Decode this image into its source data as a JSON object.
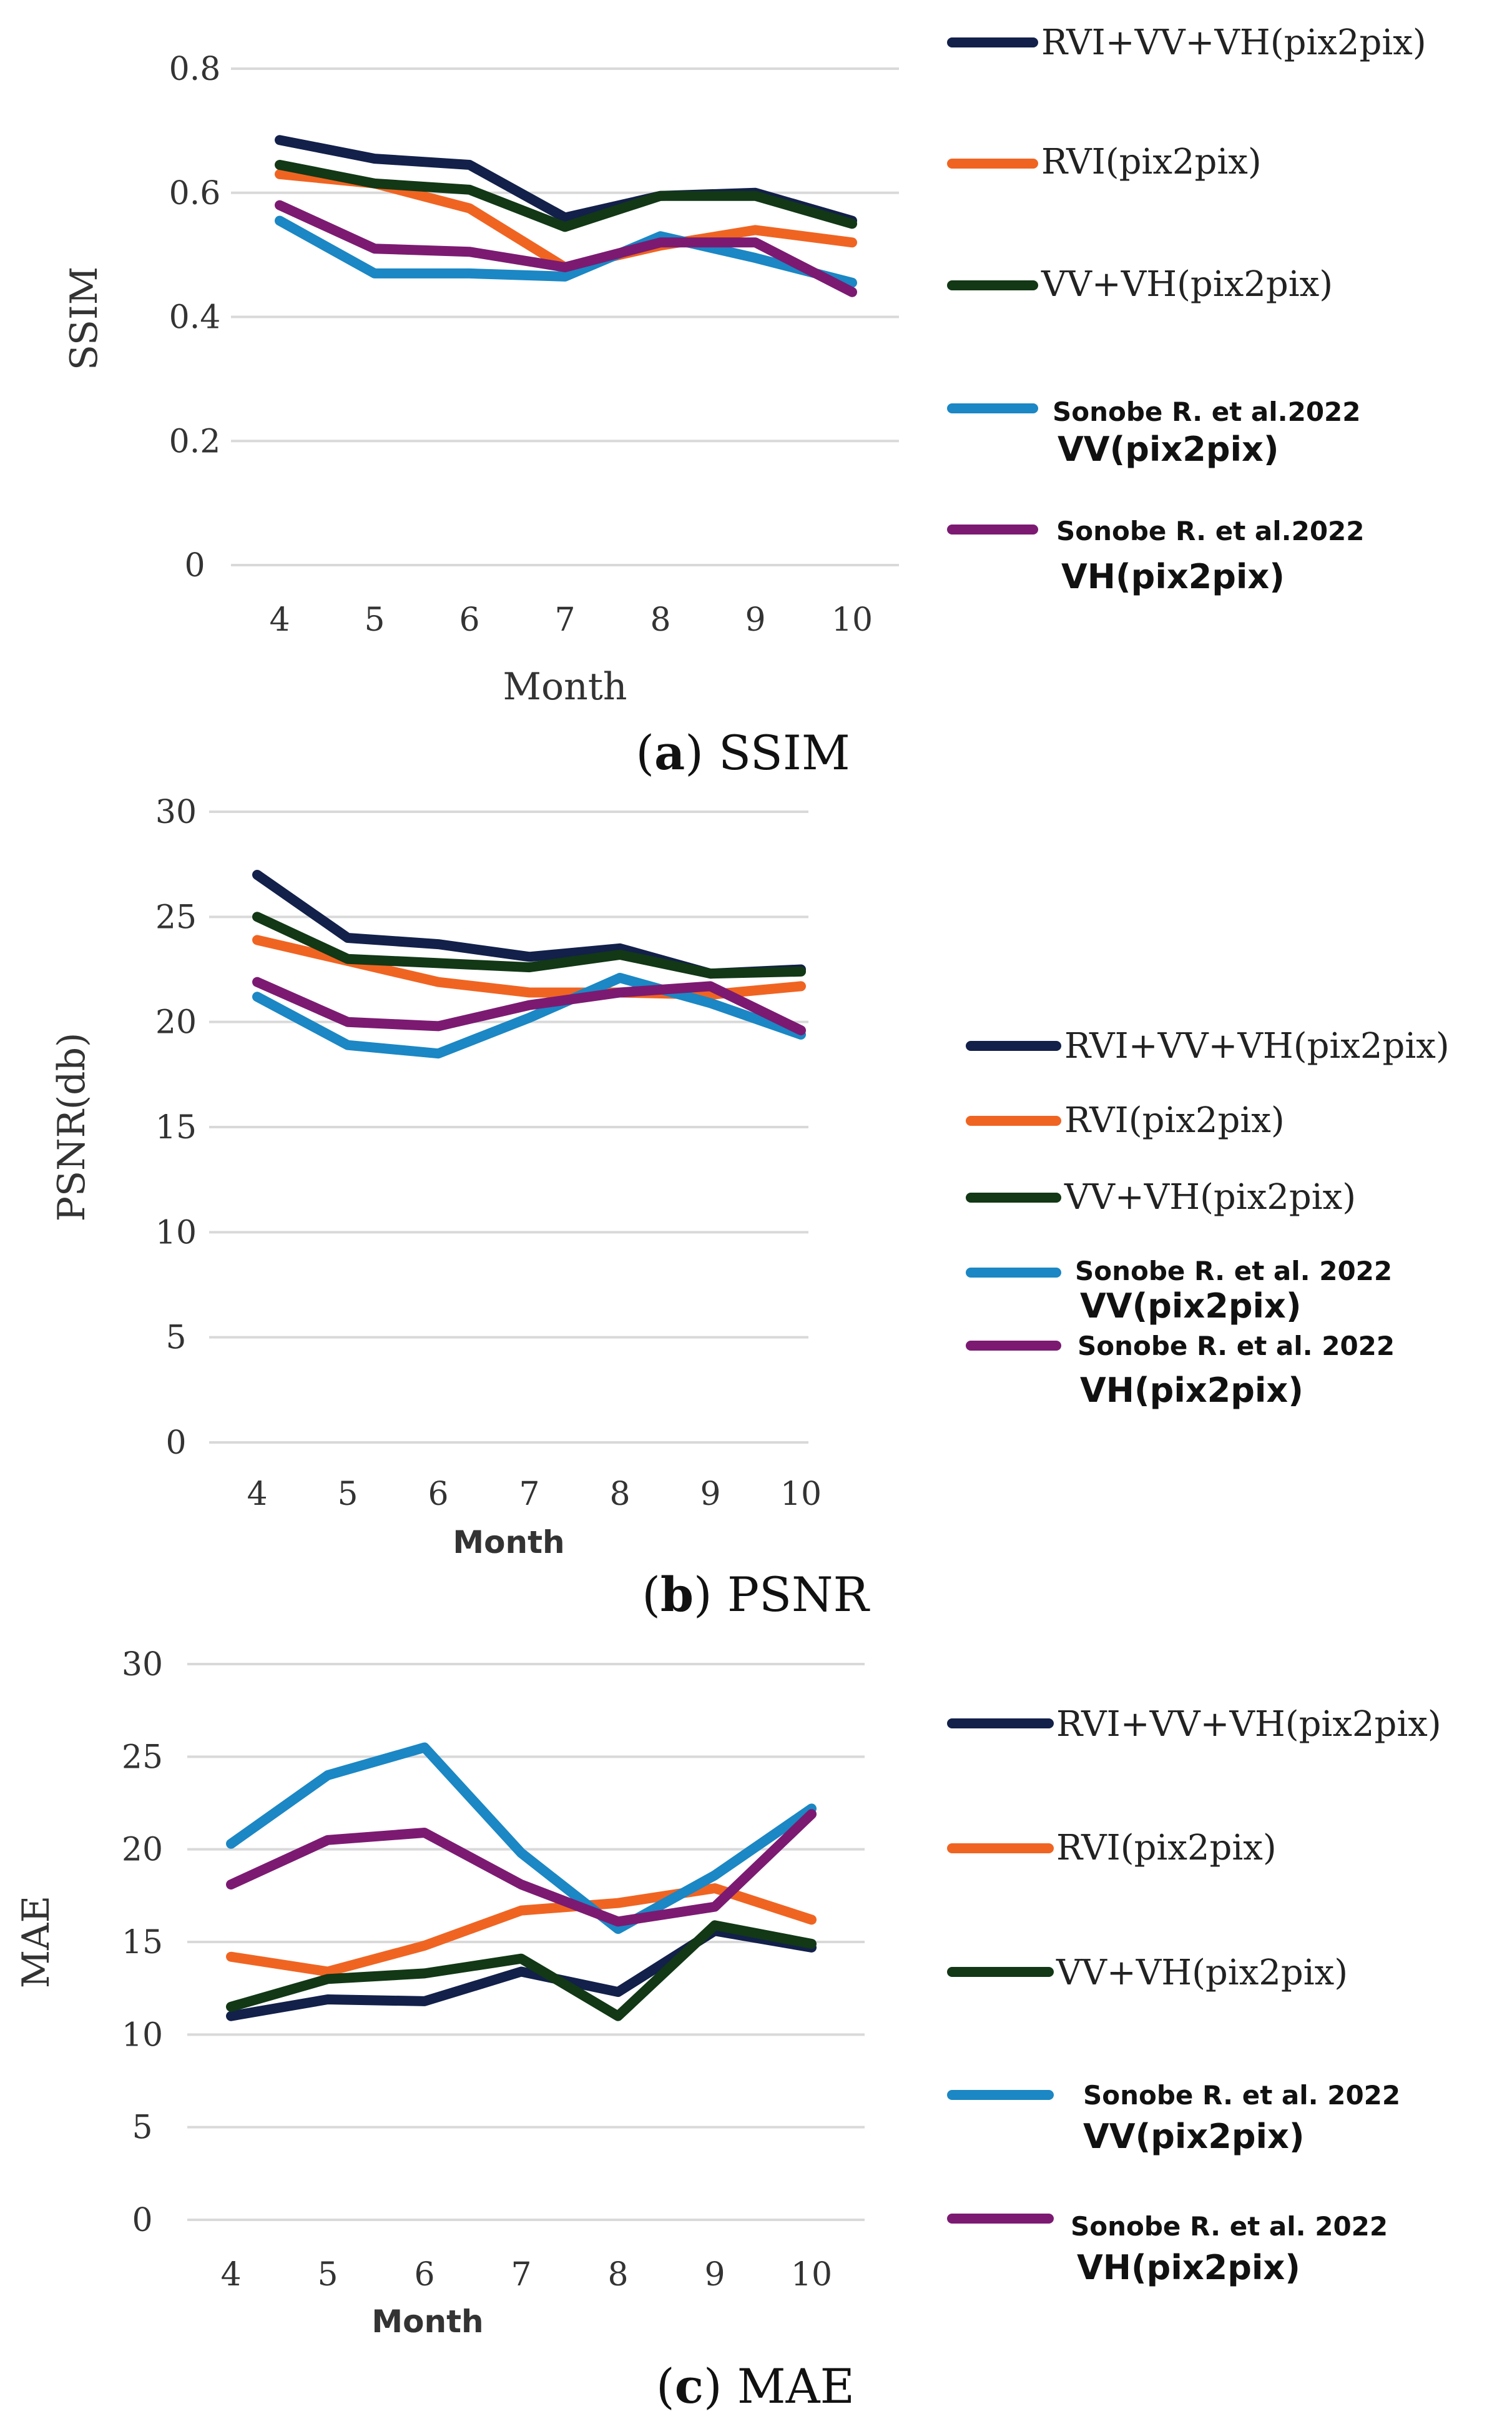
{
  "chart_data": [
    {
      "type": "line",
      "id": "ssim",
      "ylabel": "SSIM",
      "xlabel": "Month",
      "caption_letter": "a",
      "caption_text": " SSIM",
      "ylim": [
        0,
        0.8
      ],
      "yticks": [
        "0",
        "0.2",
        "0.4",
        "0.6",
        "0.8"
      ],
      "categories": [
        "4",
        "5",
        "6",
        "7",
        "8",
        "9",
        "10"
      ],
      "series": [
        {
          "name": "RVI+VV+VH(pix2pix)",
          "color": "#12204a",
          "values": [
            0.685,
            0.655,
            0.645,
            0.56,
            0.595,
            0.6,
            0.555
          ]
        },
        {
          "name": "RVI(pix2pix)",
          "color": "#f06422",
          "values": [
            0.63,
            0.615,
            0.575,
            0.48,
            0.515,
            0.54,
            0.52
          ]
        },
        {
          "name": "VV+VH(pix2pix)",
          "color": "#123816",
          "values": [
            0.645,
            0.615,
            0.605,
            0.545,
            0.595,
            0.595,
            0.55
          ]
        },
        {
          "name": "VV(pix2pix)",
          "prefix": "Sonobe R. et al.2022",
          "color": "#1b87c4",
          "values": [
            0.555,
            0.47,
            0.47,
            0.465,
            0.53,
            0.495,
            0.455
          ]
        },
        {
          "name": "VH(pix2pix)",
          "prefix": "Sonobe R. et al.2022",
          "color": "#7c1a72",
          "values": [
            0.58,
            0.51,
            0.505,
            0.48,
            0.52,
            0.52,
            0.44
          ]
        }
      ]
    },
    {
      "type": "line",
      "id": "psnr",
      "ylabel": "PSNR(db)",
      "xlabel": "Month",
      "caption_letter": "b",
      "caption_text": " PSNR",
      "ylim": [
        0,
        30
      ],
      "yticks": [
        "0",
        "5",
        "10",
        "15",
        "20",
        "25",
        "30"
      ],
      "categories": [
        "4",
        "5",
        "6",
        "7",
        "8",
        "9",
        "10"
      ],
      "series": [
        {
          "name": "RVI+VV+VH(pix2pix)",
          "color": "#12204a",
          "values": [
            27.0,
            24.0,
            23.7,
            23.1,
            23.5,
            22.3,
            22.5
          ]
        },
        {
          "name": "RVI(pix2pix)",
          "color": "#f06422",
          "values": [
            23.9,
            22.9,
            21.9,
            21.4,
            21.4,
            21.3,
            21.7
          ]
        },
        {
          "name": "VV+VH(pix2pix)",
          "color": "#123816",
          "values": [
            25.0,
            23.0,
            22.8,
            22.6,
            23.2,
            22.3,
            22.4
          ]
        },
        {
          "name": "VV(pix2pix)",
          "prefix": "Sonobe R. et al. 2022",
          "color": "#1b87c4",
          "values": [
            21.2,
            18.9,
            18.5,
            20.2,
            22.1,
            20.9,
            19.4
          ]
        },
        {
          "name": "VH(pix2pix)",
          "prefix": "Sonobe R. et al. 2022",
          "color": "#7c1a72",
          "values": [
            21.9,
            20.0,
            19.8,
            20.8,
            21.4,
            21.7,
            19.6
          ]
        }
      ]
    },
    {
      "type": "line",
      "id": "mae",
      "ylabel": "MAE",
      "xlabel": "Month",
      "caption_letter": "c",
      "caption_text": " MAE",
      "ylim": [
        0,
        30
      ],
      "yticks": [
        "0",
        "5",
        "10",
        "15",
        "20",
        "25",
        "30"
      ],
      "categories": [
        "4",
        "5",
        "6",
        "7",
        "8",
        "9",
        "10"
      ],
      "series": [
        {
          "name": "RVI+VV+VH(pix2pix)",
          "color": "#12204a",
          "values": [
            11.0,
            11.9,
            11.8,
            13.4,
            12.3,
            15.6,
            14.7
          ]
        },
        {
          "name": "RVI(pix2pix)",
          "color": "#f06422",
          "values": [
            14.2,
            13.4,
            14.8,
            16.7,
            17.1,
            17.9,
            16.2
          ]
        },
        {
          "name": "VV+VH(pix2pix)",
          "color": "#123816",
          "values": [
            11.5,
            13.0,
            13.3,
            14.1,
            11.0,
            15.9,
            14.9
          ]
        },
        {
          "name": "VV(pix2pix)",
          "prefix": "Sonobe R. et al. 2022",
          "color": "#1b87c4",
          "values": [
            20.3,
            24.0,
            25.5,
            19.8,
            15.7,
            18.6,
            22.2
          ]
        },
        {
          "name": "VH(pix2pix)",
          "prefix": "Sonobe R. et al. 2022",
          "color": "#7c1a72",
          "values": [
            18.1,
            20.5,
            20.9,
            18.1,
            16.1,
            16.9,
            21.9
          ]
        }
      ]
    }
  ]
}
